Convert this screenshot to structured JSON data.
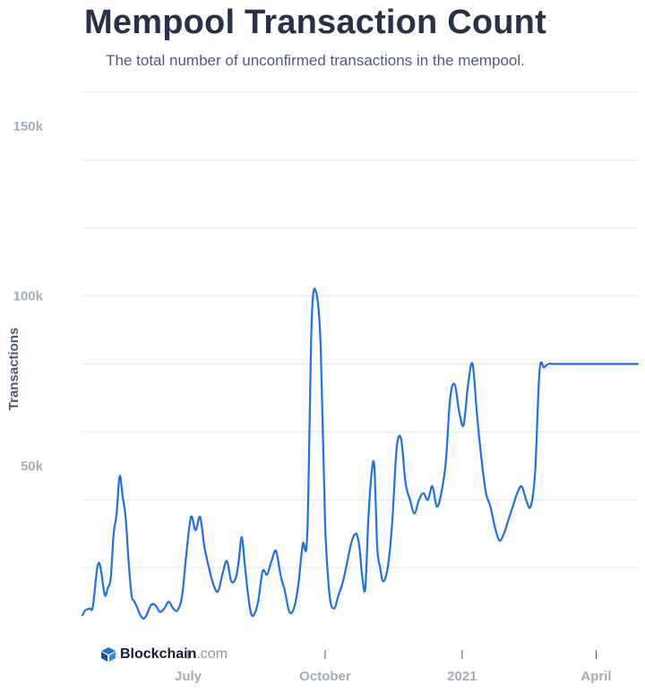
{
  "chart_data": {
    "type": "line",
    "title": "Mempool Transaction Count",
    "subtitle": "The total number of unconfirmed transactions in the mempool.",
    "ylabel": "Transactions",
    "xlabel": "",
    "ylim": [
      0,
      160000
    ],
    "y_ticks": [
      {
        "value": 50000,
        "label": "50k"
      },
      {
        "value": 100000,
        "label": "100k"
      },
      {
        "value": 150000,
        "label": "150k"
      }
    ],
    "x_range": [
      "2020-04-21",
      "2021-04-29"
    ],
    "x_ticks": [
      {
        "date": "2020-07-01",
        "label": "July"
      },
      {
        "date": "2020-10-01",
        "label": "October"
      },
      {
        "date": "2021-01-01",
        "label": "2021"
      },
      {
        "date": "2021-04-01",
        "label": "April"
      }
    ],
    "grid": true,
    "line_color": "#1f6fe5",
    "series": [
      {
        "x": [
          "2020-04-21",
          "2020-04-23",
          "2020-04-26",
          "2020-04-28",
          "2020-05-01",
          "2020-05-03",
          "2020-05-06",
          "2020-05-08",
          "2020-05-10",
          "2020-05-12",
          "2020-05-14",
          "2020-05-16",
          "2020-05-18",
          "2020-05-20",
          "2020-05-22",
          "2020-05-24",
          "2020-05-26",
          "2020-05-28",
          "2020-05-30",
          "2020-06-01",
          "2020-06-03",
          "2020-06-06",
          "2020-06-09",
          "2020-06-12",
          "2020-06-15",
          "2020-06-18",
          "2020-06-21",
          "2020-06-24",
          "2020-06-27",
          "2020-06-30",
          "2020-07-03",
          "2020-07-06",
          "2020-07-09",
          "2020-07-12",
          "2020-07-15",
          "2020-07-18",
          "2020-07-21",
          "2020-07-24",
          "2020-07-27",
          "2020-07-30",
          "2020-08-02",
          "2020-08-04",
          "2020-08-06",
          "2020-08-08",
          "2020-08-10",
          "2020-08-12",
          "2020-08-14",
          "2020-08-17",
          "2020-08-20",
          "2020-08-23",
          "2020-08-26",
          "2020-08-29",
          "2020-09-01",
          "2020-09-04",
          "2020-09-07",
          "2020-09-10",
          "2020-09-13",
          "2020-09-16",
          "2020-09-19",
          "2020-09-22",
          "2020-09-25",
          "2020-09-28",
          "2020-10-01",
          "2020-10-04",
          "2020-10-07",
          "2020-10-10",
          "2020-10-13",
          "2020-10-16",
          "2020-10-19",
          "2020-10-22",
          "2020-10-24",
          "2020-10-26",
          "2020-10-28",
          "2020-10-30",
          "2020-11-01",
          "2020-11-03",
          "2020-11-05",
          "2020-11-07",
          "2020-11-09",
          "2020-11-12",
          "2020-11-15",
          "2020-11-18",
          "2020-11-21",
          "2020-11-24",
          "2020-11-27",
          "2020-11-30",
          "2020-12-03",
          "2020-12-06",
          "2020-12-09",
          "2020-12-12",
          "2020-12-15",
          "2020-12-18",
          "2020-12-21",
          "2020-12-24",
          "2020-12-27",
          "2020-12-30",
          "2021-01-02",
          "2021-01-05",
          "2021-01-08",
          "2021-01-11",
          "2021-01-14",
          "2021-01-17",
          "2021-01-20",
          "2021-01-23",
          "2021-01-26",
          "2021-01-29",
          "2021-02-01",
          "2021-02-04",
          "2021-02-07",
          "2021-02-10",
          "2021-02-13",
          "2021-02-16",
          "2021-02-19",
          "2021-02-22",
          "2021-02-25",
          "2021-02-28",
          "2021-03-03",
          "2021-03-06",
          "2021-03-09",
          "2021-03-12",
          "2021-03-15",
          "2021-03-18",
          "2021-03-21",
          "2021-03-24",
          "2021-03-27",
          "2021-03-30",
          "2021-04-02",
          "2021-04-05",
          "2021-04-08",
          "2021-04-11",
          "2021-04-14",
          "2021-04-17",
          "2021-04-20",
          "2021-04-23",
          "2021-04-26",
          "2021-04-29"
        ],
        "values": [
          6000,
          7500,
          8000,
          8500,
          20000,
          20500,
          12000,
          14000,
          17000,
          30000,
          36000,
          47000,
          41000,
          35000,
          22000,
          12000,
          10000,
          8000,
          6000,
          5000,
          6000,
          9000,
          9000,
          7000,
          8000,
          10000,
          8000,
          7500,
          12000,
          25000,
          35000,
          31000,
          35000,
          26000,
          20000,
          15000,
          13000,
          18000,
          22000,
          16000,
          17000,
          22000,
          29000,
          21000,
          13000,
          7000,
          6000,
          10000,
          19000,
          18000,
          22000,
          25000,
          18000,
          13000,
          7000,
          8000,
          15000,
          27000,
          30000,
          93000,
          101000,
          85000,
          33000,
          12000,
          8000,
          12000,
          16000,
          22000,
          28000,
          30000,
          26000,
          17000,
          14000,
          34000,
          47000,
          50000,
          26000,
          20000,
          16000,
          20000,
          33000,
          55000,
          58000,
          45000,
          40000,
          36000,
          40000,
          42000,
          40000,
          44000,
          38000,
          42000,
          51000,
          70000,
          74000,
          66000,
          62000,
          74000,
          80000,
          65000,
          52000,
          42000,
          38000,
          32000,
          28000,
          30000,
          34000,
          38000,
          42000,
          44000,
          40000,
          38000,
          48000,
          78000,
          79000,
          80000,
          80000,
          80000,
          80000,
          80000,
          80000,
          80000,
          80000,
          80000,
          80000,
          80000,
          80000,
          80000,
          80000,
          80000,
          80000,
          80000,
          80000,
          80000,
          80000,
          80000
        ],
        "note": ""
      }
    ],
    "watermark": {
      "brand": "Blockchain",
      "tld": ".com"
    }
  }
}
